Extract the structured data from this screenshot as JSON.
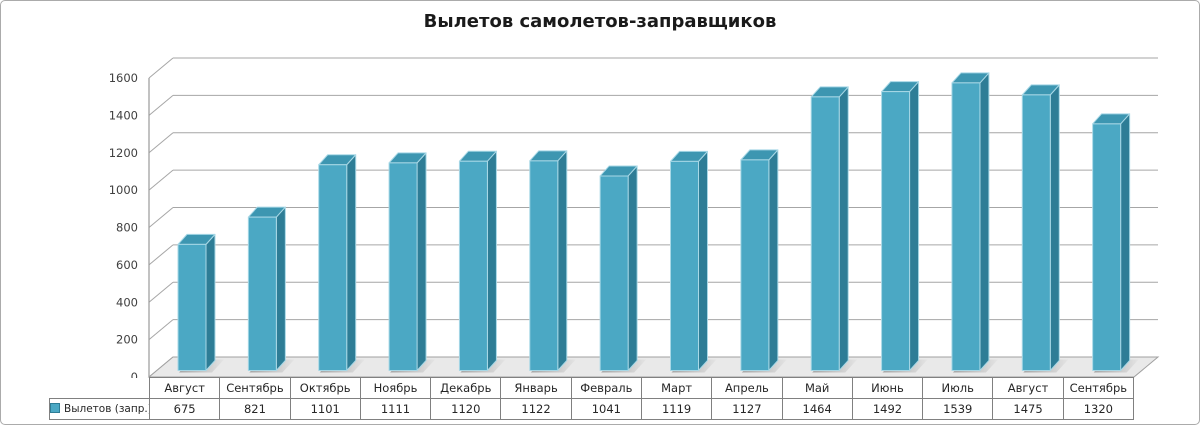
{
  "title": "Вылетов самолетов-заправщиков",
  "chart_data": {
    "type": "bar",
    "style": "3d-column",
    "title": "Вылетов самолетов-заправщиков",
    "categories": [
      "Август",
      "Сентябрь",
      "Октябрь",
      "Ноябрь",
      "Декабрь",
      "Январь",
      "Февраль",
      "Март",
      "Апрель",
      "Май",
      "Июнь",
      "Июль",
      "Август",
      "Сентябрь"
    ],
    "series": [
      {
        "name": "Вылетов (запр.)",
        "values": [
          675,
          821,
          1101,
          1111,
          1120,
          1122,
          1041,
          1119,
          1127,
          1464,
          1492,
          1539,
          1475,
          1320
        ]
      }
    ],
    "xlabel": "",
    "ylabel": "",
    "ylim": [
      0,
      1600
    ],
    "y_ticks": [
      0,
      200,
      400,
      600,
      800,
      1000,
      1200,
      1400,
      1600
    ],
    "grid": true,
    "legend_position": "bottom-left-table",
    "colors": {
      "bar_front": "#4BA8C4",
      "bar_side": "#2E7D96",
      "bar_top": "#3D96B1",
      "bar_edge": "#A8D8E6",
      "gridline": "#A6A6A6",
      "axis": "#9A9A9A",
      "floor_fill": "#E9E9E9",
      "floor_edge": "#A0A0A0",
      "shadow": "#8F8F8F",
      "table_border": "#808080",
      "text": "#404040"
    }
  }
}
